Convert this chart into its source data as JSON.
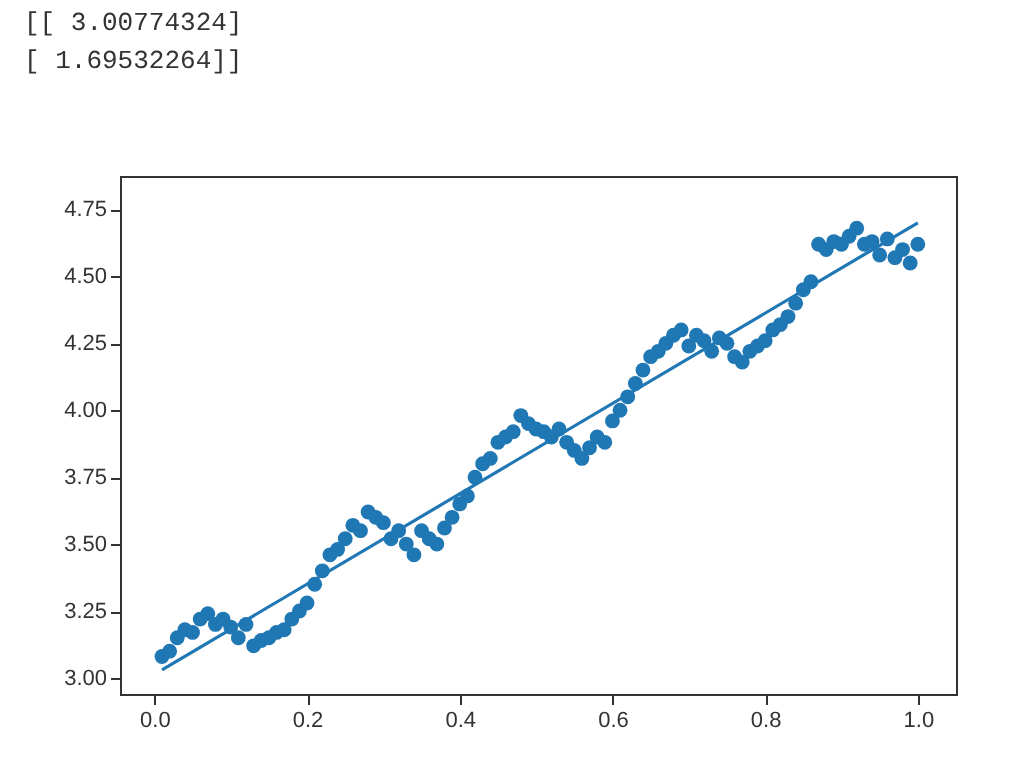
{
  "chart_data": {
    "type": "scatter",
    "annotations": [
      "[[ 3.00774324]",
      " [ 1.69532264]]"
    ],
    "xlim": [
      -0.045,
      1.05
    ],
    "ylim": [
      2.94,
      4.875
    ],
    "xticks": [
      {
        "value": 0,
        "label": "0.0"
      },
      {
        "value": 0.2,
        "label": "0.2"
      },
      {
        "value": 0.4,
        "label": "0.4"
      },
      {
        "value": 0.6,
        "label": "0.6"
      },
      {
        "value": 0.8,
        "label": "0.8"
      },
      {
        "value": 1,
        "label": "1.0"
      }
    ],
    "yticks": [
      {
        "value": 3,
        "label": "3.00"
      },
      {
        "value": 3.25,
        "label": "3.25"
      },
      {
        "value": 3.5,
        "label": "3.50"
      },
      {
        "value": 3.75,
        "label": "3.75"
      },
      {
        "value": 4,
        "label": "4.00"
      },
      {
        "value": 4.25,
        "label": "4.25"
      },
      {
        "value": 4.5,
        "label": "4.50"
      },
      {
        "value": 4.75,
        "label": "4.75"
      }
    ],
    "grid": false,
    "series": [
      {
        "color": "#1f77b4",
        "marker": "circle",
        "x": [
          0.01,
          0.02,
          0.03,
          0.04,
          0.05,
          0.06,
          0.07,
          0.08,
          0.09,
          0.1,
          0.11,
          0.12,
          0.13,
          0.14,
          0.15,
          0.16,
          0.17,
          0.18,
          0.19,
          0.2,
          0.21,
          0.22,
          0.23,
          0.24,
          0.25,
          0.26,
          0.27,
          0.28,
          0.29,
          0.3,
          0.31,
          0.32,
          0.33,
          0.34,
          0.35,
          0.36,
          0.37,
          0.38,
          0.39,
          0.4,
          0.41,
          0.42,
          0.43,
          0.44,
          0.45,
          0.46,
          0.47,
          0.48,
          0.49,
          0.5,
          0.51,
          0.52,
          0.53,
          0.54,
          0.55,
          0.56,
          0.57,
          0.58,
          0.59,
          0.6,
          0.61,
          0.62,
          0.63,
          0.64,
          0.65,
          0.66,
          0.67,
          0.68,
          0.69,
          0.7,
          0.71,
          0.72,
          0.73,
          0.74,
          0.75,
          0.76,
          0.77,
          0.78,
          0.79,
          0.8,
          0.81,
          0.82,
          0.83,
          0.84,
          0.85,
          0.86,
          0.87,
          0.88,
          0.89,
          0.9,
          0.91,
          0.92,
          0.93,
          0.94,
          0.95,
          0.96,
          0.97,
          0.98,
          0.99,
          1.0
        ],
        "values": [
          3.08,
          3.1,
          3.15,
          3.18,
          3.17,
          3.22,
          3.24,
          3.2,
          3.22,
          3.19,
          3.15,
          3.2,
          3.12,
          3.14,
          3.15,
          3.17,
          3.18,
          3.22,
          3.25,
          3.28,
          3.35,
          3.4,
          3.46,
          3.48,
          3.52,
          3.57,
          3.55,
          3.62,
          3.6,
          3.58,
          3.52,
          3.55,
          3.5,
          3.46,
          3.55,
          3.52,
          3.5,
          3.56,
          3.6,
          3.65,
          3.68,
          3.75,
          3.8,
          3.82,
          3.88,
          3.9,
          3.92,
          3.98,
          3.95,
          3.93,
          3.92,
          3.9,
          3.93,
          3.88,
          3.85,
          3.82,
          3.86,
          3.9,
          3.88,
          3.96,
          4.0,
          4.05,
          4.1,
          4.15,
          4.2,
          4.22,
          4.25,
          4.28,
          4.3,
          4.24,
          4.28,
          4.26,
          4.22,
          4.27,
          4.25,
          4.2,
          4.18,
          4.22,
          4.24,
          4.26,
          4.3,
          4.32,
          4.35,
          4.4,
          4.45,
          4.48,
          4.62,
          4.6,
          4.63,
          4.62,
          4.65,
          4.68,
          4.62,
          4.63,
          4.58,
          4.64,
          4.57,
          4.6,
          4.55,
          4.62
        ]
      },
      {
        "type": "line",
        "color": "#1f77b4",
        "marker": "none",
        "x": [
          0.01,
          1.0
        ],
        "values": [
          3.03,
          4.7
        ]
      }
    ]
  }
}
